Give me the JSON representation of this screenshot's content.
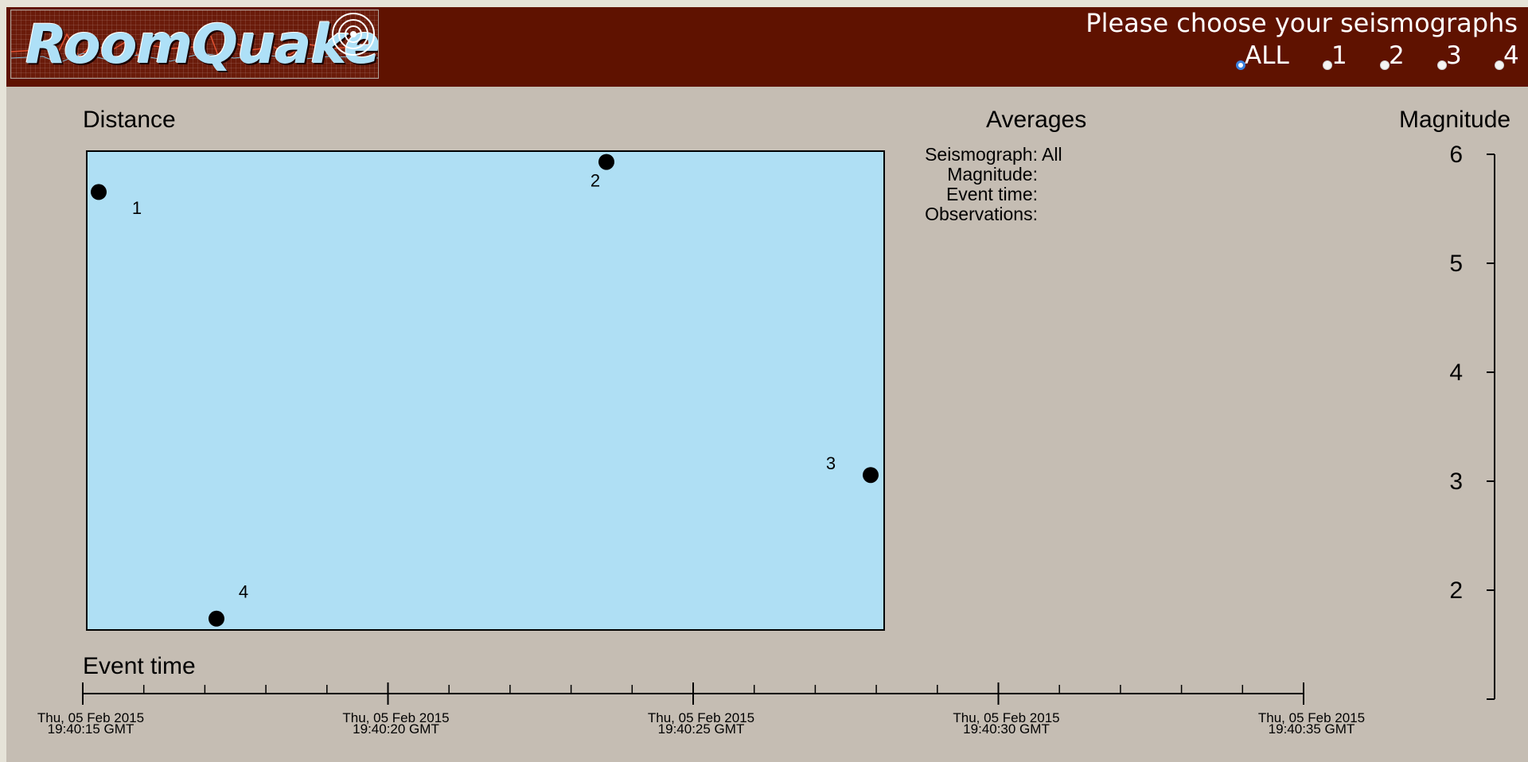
{
  "header": {
    "logo_text": "RoomQuake",
    "prompt": "Please choose your seismographs",
    "radios": [
      {
        "label": "ALL",
        "checked": true
      },
      {
        "label": "1",
        "checked": false
      },
      {
        "label": "2",
        "checked": false
      },
      {
        "label": "3",
        "checked": false
      },
      {
        "label": "4",
        "checked": false
      }
    ]
  },
  "distance": {
    "title": "Distance",
    "points": [
      {
        "label": "1",
        "x": 0.014,
        "y": 0.916
      },
      {
        "label": "2",
        "x": 0.652,
        "y": 0.979
      },
      {
        "label": "3",
        "x": 0.984,
        "y": 0.323
      },
      {
        "label": "4",
        "x": 0.162,
        "y": 0.022
      }
    ]
  },
  "averages": {
    "title": "Averages",
    "rows": [
      {
        "label": "Seismograph:",
        "value": "All"
      },
      {
        "label": "Magnitude:",
        "value": ""
      },
      {
        "label": "Event time:",
        "value": ""
      },
      {
        "label": "Observations:",
        "value": ""
      }
    ]
  },
  "magnitude": {
    "title": "Magnitude",
    "min": 1.0,
    "max": 6.0,
    "ticks": [
      "6",
      "5",
      "4",
      "3",
      "2"
    ]
  },
  "event_time": {
    "title": "Event time",
    "tick_labels": [
      {
        "date": "Thu, 05 Feb 2015",
        "time": "19:40:15 GMT"
      },
      {
        "date": "Thu, 05 Feb 2015",
        "time": "19:40:20 GMT"
      },
      {
        "date": "Thu, 05 Feb 2015",
        "time": "19:40:25 GMT"
      },
      {
        "date": "Thu, 05 Feb 2015",
        "time": "19:40:30 GMT"
      },
      {
        "date": "Thu, 05 Feb 2015",
        "time": "19:40:35 GMT"
      }
    ],
    "minor_ticks_per_interval": 5
  },
  "colors": {
    "header_bg": "#5f1200",
    "page_bg": "#c5bdb3",
    "plot_bg": "#afdff4",
    "radio_accent": "#3b82e0"
  }
}
